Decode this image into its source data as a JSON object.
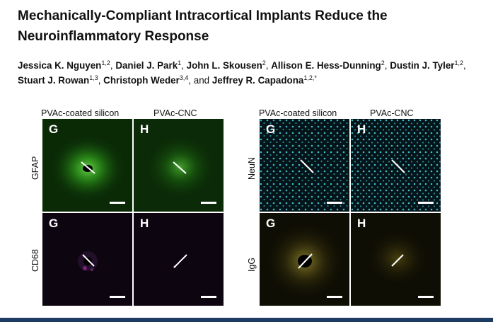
{
  "paper": {
    "title": "Mechanically-Compliant Intracortical Implants Reduce the Neuroinflammatory Response",
    "authors": [
      {
        "name": "Jessica K. Nguyen",
        "sup": "1,2",
        "sep": ", "
      },
      {
        "name": "Daniel J. Park",
        "sup": "1",
        "sep": ", "
      },
      {
        "name": "John L. Skousen",
        "sup": "2",
        "sep": ", "
      },
      {
        "name": "Allison E. Hess-Dunning",
        "sup": "2",
        "sep": ", "
      },
      {
        "name": "Dustin J. Tyler",
        "sup": "1,2",
        "sep": ", "
      },
      {
        "name": "Stuart J. Rowan",
        "sup": "1,3",
        "sep": ", "
      },
      {
        "name": "Christoph Weder",
        "sup": "3,4",
        "sep": ", and "
      },
      {
        "name": "Jeffrey R. Capadona",
        "sup": "1,2,*",
        "sep": ""
      }
    ]
  },
  "figure": {
    "left": {
      "col1": "PVAc-coated silicon",
      "col2": "PVAc-CNC",
      "row1": "GFAP",
      "row2": "CD68",
      "tiles": [
        "G",
        "H",
        "G",
        "H"
      ]
    },
    "right": {
      "col1": "PVAc-coated silicon",
      "col2": "PVAc-CNC",
      "row1": "NeuN",
      "row2": "IgG",
      "tiles": [
        "G",
        "H",
        "G",
        "H"
      ]
    }
  },
  "colors": {
    "gfap": "#2a8a1a",
    "cd68": "#8a2a8a",
    "neun": "#3fb8c8",
    "igg": "#8a7a1a",
    "footer": "#1e3c63"
  }
}
